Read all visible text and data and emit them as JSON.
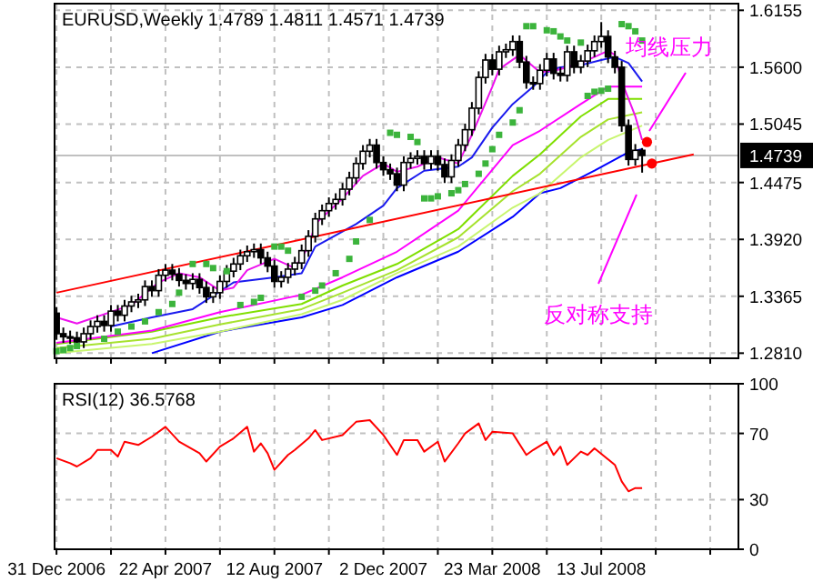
{
  "chart_data": [
    {
      "type": "candlestick",
      "title": "EURUSD,Weekly  1.4789 1.4811 1.4571 1.4739",
      "x": [
        "2006-12-31",
        "2007-01-07",
        "2007-01-14",
        "2007-01-21",
        "2007-01-28",
        "2007-02-04",
        "2007-02-11",
        "2007-02-18",
        "2007-02-25",
        "2007-03-04",
        "2007-03-11",
        "2007-03-18",
        "2007-03-25",
        "2007-04-01",
        "2007-04-08",
        "2007-04-15",
        "2007-04-22",
        "2007-04-29",
        "2007-05-06",
        "2007-05-13",
        "2007-05-20",
        "2007-05-27",
        "2007-06-03",
        "2007-06-10",
        "2007-06-17",
        "2007-06-24",
        "2007-07-01",
        "2007-07-08",
        "2007-07-15",
        "2007-07-22",
        "2007-07-29",
        "2007-08-05",
        "2007-08-12",
        "2007-08-19",
        "2007-08-26",
        "2007-09-02",
        "2007-09-09",
        "2007-09-16",
        "2007-09-23",
        "2007-09-30",
        "2007-10-07",
        "2007-10-14",
        "2007-10-21",
        "2007-10-28",
        "2007-11-04",
        "2007-11-11",
        "2007-11-18",
        "2007-11-25",
        "2007-12-02",
        "2007-12-09",
        "2007-12-16",
        "2007-12-23",
        "2007-12-30",
        "2008-01-06",
        "2008-01-13",
        "2008-01-20",
        "2008-01-27",
        "2008-02-03",
        "2008-02-10",
        "2008-02-17",
        "2008-02-24",
        "2008-03-02",
        "2008-03-09",
        "2008-03-16",
        "2008-03-23",
        "2008-03-30",
        "2008-04-06",
        "2008-04-13",
        "2008-04-20",
        "2008-04-27",
        "2008-05-04",
        "2008-05-11",
        "2008-05-18",
        "2008-05-25",
        "2008-06-01",
        "2008-06-08",
        "2008-06-15",
        "2008-06-22",
        "2008-06-29",
        "2008-07-06",
        "2008-07-13",
        "2008-07-20",
        "2008-07-27",
        "2008-08-03",
        "2008-08-10",
        "2008-08-17",
        "2008-08-24"
      ],
      "ohlc": [
        [
          1.32,
          1.326,
          1.294,
          1.3
        ],
        [
          1.3,
          1.306,
          1.291,
          1.297
        ],
        [
          1.297,
          1.303,
          1.29,
          1.296
        ],
        [
          1.296,
          1.302,
          1.286,
          1.292
        ],
        [
          1.292,
          1.306,
          1.286,
          1.3
        ],
        [
          1.3,
          1.313,
          1.294,
          1.307
        ],
        [
          1.307,
          1.318,
          1.301,
          1.312
        ],
        [
          1.312,
          1.318,
          1.302,
          1.308
        ],
        [
          1.308,
          1.328,
          1.302,
          1.322
        ],
        [
          1.322,
          1.328,
          1.312,
          1.318
        ],
        [
          1.318,
          1.333,
          1.312,
          1.327
        ],
        [
          1.327,
          1.337,
          1.321,
          1.331
        ],
        [
          1.331,
          1.339,
          1.325,
          1.333
        ],
        [
          1.333,
          1.352,
          1.327,
          1.346
        ],
        [
          1.346,
          1.352,
          1.336,
          1.342
        ],
        [
          1.342,
          1.363,
          1.336,
          1.357
        ],
        [
          1.357,
          1.368,
          1.351,
          1.362
        ],
        [
          1.362,
          1.368,
          1.352,
          1.358
        ],
        [
          1.358,
          1.364,
          1.346,
          1.352
        ],
        [
          1.352,
          1.358,
          1.343,
          1.349
        ],
        [
          1.349,
          1.359,
          1.343,
          1.353
        ],
        [
          1.353,
          1.359,
          1.339,
          1.345
        ],
        [
          1.345,
          1.351,
          1.33,
          1.336
        ],
        [
          1.336,
          1.346,
          1.33,
          1.34
        ],
        [
          1.34,
          1.357,
          1.334,
          1.351
        ],
        [
          1.351,
          1.367,
          1.345,
          1.361
        ],
        [
          1.361,
          1.374,
          1.355,
          1.368
        ],
        [
          1.368,
          1.382,
          1.362,
          1.376
        ],
        [
          1.376,
          1.386,
          1.37,
          1.38
        ],
        [
          1.38,
          1.388,
          1.374,
          1.382
        ],
        [
          1.382,
          1.388,
          1.368,
          1.374
        ],
        [
          1.374,
          1.38,
          1.36,
          1.366
        ],
        [
          1.366,
          1.372,
          1.345,
          1.351
        ],
        [
          1.351,
          1.361,
          1.345,
          1.355
        ],
        [
          1.355,
          1.369,
          1.349,
          1.363
        ],
        [
          1.363,
          1.375,
          1.357,
          1.369
        ],
        [
          1.369,
          1.387,
          1.363,
          1.381
        ],
        [
          1.381,
          1.401,
          1.375,
          1.395
        ],
        [
          1.395,
          1.418,
          1.389,
          1.412
        ],
        [
          1.412,
          1.426,
          1.406,
          1.42
        ],
        [
          1.42,
          1.433,
          1.414,
          1.427
        ],
        [
          1.427,
          1.437,
          1.421,
          1.431
        ],
        [
          1.431,
          1.447,
          1.425,
          1.441
        ],
        [
          1.441,
          1.458,
          1.435,
          1.452
        ],
        [
          1.452,
          1.472,
          1.446,
          1.466
        ],
        [
          1.466,
          1.484,
          1.46,
          1.478
        ],
        [
          1.478,
          1.49,
          1.472,
          1.484
        ],
        [
          1.484,
          1.49,
          1.461,
          1.467
        ],
        [
          1.467,
          1.473,
          1.454,
          1.46
        ],
        [
          1.46,
          1.466,
          1.45,
          1.456
        ],
        [
          1.456,
          1.462,
          1.439,
          1.445
        ],
        [
          1.445,
          1.473,
          1.439,
          1.467
        ],
        [
          1.467,
          1.477,
          1.461,
          1.471
        ],
        [
          1.471,
          1.479,
          1.465,
          1.473
        ],
        [
          1.473,
          1.479,
          1.46,
          1.466
        ],
        [
          1.466,
          1.479,
          1.46,
          1.473
        ],
        [
          1.473,
          1.479,
          1.459,
          1.465
        ],
        [
          1.465,
          1.471,
          1.447,
          1.453
        ],
        [
          1.453,
          1.475,
          1.447,
          1.469
        ],
        [
          1.469,
          1.49,
          1.463,
          1.484
        ],
        [
          1.484,
          1.505,
          1.478,
          1.499
        ],
        [
          1.499,
          1.526,
          1.493,
          1.52
        ],
        [
          1.52,
          1.556,
          1.514,
          1.55
        ],
        [
          1.55,
          1.573,
          1.544,
          1.567
        ],
        [
          1.567,
          1.573,
          1.552,
          1.558
        ],
        [
          1.558,
          1.581,
          1.552,
          1.575
        ],
        [
          1.575,
          1.583,
          1.569,
          1.577
        ],
        [
          1.577,
          1.591,
          1.571,
          1.585
        ],
        [
          1.585,
          1.591,
          1.559,
          1.565
        ],
        [
          1.565,
          1.571,
          1.539,
          1.545
        ],
        [
          1.545,
          1.551,
          1.538,
          1.544
        ],
        [
          1.544,
          1.563,
          1.538,
          1.557
        ],
        [
          1.557,
          1.574,
          1.551,
          1.568
        ],
        [
          1.568,
          1.574,
          1.548,
          1.554
        ],
        [
          1.554,
          1.56,
          1.546,
          1.552
        ],
        [
          1.552,
          1.581,
          1.546,
          1.575
        ],
        [
          1.575,
          1.581,
          1.554,
          1.56
        ],
        [
          1.56,
          1.572,
          1.554,
          1.566
        ],
        [
          1.566,
          1.582,
          1.56,
          1.576
        ],
        [
          1.576,
          1.591,
          1.57,
          1.585
        ],
        [
          1.585,
          1.604,
          1.579,
          1.59
        ],
        [
          1.59,
          1.596,
          1.564,
          1.57
        ],
        [
          1.57,
          1.576,
          1.554,
          1.56
        ],
        [
          1.56,
          1.566,
          1.497,
          1.503
        ],
        [
          1.503,
          1.509,
          1.464,
          1.47
        ],
        [
          1.47,
          1.485,
          1.464,
          1.4789
        ],
        [
          1.4789,
          1.4811,
          1.4571,
          1.4739
        ]
      ],
      "series": [
        {
          "type": "line",
          "color": "#0000ff",
          "x": [
            "2007-04-08",
            "2007-06-17",
            "2007-09-09",
            "2007-10-21",
            "2007-12-16",
            "2008-02-17",
            "2008-04-13",
            "2008-05-11",
            "2008-06-01",
            "2008-07-06",
            "2008-08-10",
            "2008-08-24"
          ],
          "values": [
            1.281,
            1.302,
            1.316,
            1.328,
            1.355,
            1.38,
            1.414,
            1.437,
            1.442,
            1.459,
            1.477,
            1.48
          ]
        },
        {
          "type": "line",
          "color": "#c8f56e",
          "x": [
            "2006-12-31",
            "2007-04-08",
            "2007-06-17",
            "2007-09-09",
            "2007-10-21",
            "2007-12-16",
            "2008-02-17",
            "2008-04-13",
            "2008-05-11",
            "2008-06-22",
            "2008-07-20",
            "2008-08-24"
          ],
          "values": [
            1.281,
            1.29,
            1.302,
            1.319,
            1.333,
            1.359,
            1.385,
            1.423,
            1.437,
            1.472,
            1.489,
            1.503
          ]
        },
        {
          "type": "line",
          "color": "#a6e22e",
          "x": [
            "2006-12-31",
            "2007-04-08",
            "2007-06-17",
            "2007-09-09",
            "2007-10-21",
            "2007-12-16",
            "2008-02-17",
            "2008-04-13",
            "2008-05-11",
            "2008-06-22",
            "2008-07-20",
            "2008-08-24"
          ],
          "values": [
            1.286,
            1.295,
            1.309,
            1.324,
            1.34,
            1.362,
            1.394,
            1.439,
            1.456,
            1.492,
            1.509,
            1.516
          ]
        },
        {
          "type": "line",
          "color": "#7fdf00",
          "x": [
            "2006-12-31",
            "2007-04-08",
            "2007-06-17",
            "2007-09-09",
            "2007-10-21",
            "2007-12-16",
            "2008-02-17",
            "2008-04-13",
            "2008-05-11",
            "2008-06-22",
            "2008-07-20",
            "2008-08-24"
          ],
          "values": [
            1.29,
            1.302,
            1.316,
            1.329,
            1.347,
            1.368,
            1.402,
            1.454,
            1.475,
            1.512,
            1.529,
            1.529
          ]
        },
        {
          "type": "line",
          "color": "#ff00ff",
          "x": [
            "2006-12-31",
            "2007-04-08",
            "2007-06-17",
            "2007-09-09",
            "2007-10-21",
            "2007-12-16",
            "2008-02-17",
            "2008-04-13",
            "2008-05-11",
            "2008-06-22",
            "2008-07-20",
            "2008-08-24"
          ],
          "values": [
            1.291,
            1.303,
            1.321,
            1.338,
            1.355,
            1.38,
            1.42,
            1.484,
            1.498,
            1.524,
            1.541,
            1.541
          ]
        },
        {
          "type": "line",
          "color": "#1a1aee",
          "x": [
            "2007-02-25",
            "2007-04-08",
            "2007-05-20",
            "2007-07-01",
            "2007-08-12",
            "2007-09-09",
            "2007-09-23",
            "2007-11-04",
            "2007-12-02",
            "2007-12-16",
            "2008-01-13",
            "2008-02-17",
            "2008-03-02",
            "2008-03-23",
            "2008-04-13",
            "2008-05-04",
            "2008-05-18",
            "2008-06-01",
            "2008-06-22",
            "2008-07-13",
            "2008-07-27",
            "2008-08-10",
            "2008-08-24"
          ],
          "values": [
            1.307,
            1.316,
            1.324,
            1.35,
            1.355,
            1.359,
            1.385,
            1.407,
            1.425,
            1.442,
            1.459,
            1.463,
            1.472,
            1.501,
            1.524,
            1.541,
            1.555,
            1.56,
            1.562,
            1.567,
            1.57,
            1.564,
            1.546
          ]
        },
        {
          "type": "line",
          "color": "#ee10ee",
          "x": [
            "2006-12-31",
            "2007-01-21",
            "2007-03-18",
            "2007-04-15",
            "2007-05-06",
            "2007-05-27",
            "2007-06-17",
            "2007-07-01",
            "2007-07-15",
            "2007-08-12",
            "2007-09-02",
            "2007-09-16",
            "2007-09-23",
            "2007-10-21",
            "2007-11-11",
            "2007-12-02",
            "2007-12-16",
            "2008-01-06",
            "2008-01-27",
            "2008-02-17",
            "2008-03-02",
            "2008-03-23",
            "2008-03-30",
            "2008-04-20",
            "2008-05-11",
            "2008-06-01",
            "2008-06-22",
            "2008-07-20",
            "2008-07-27",
            "2008-08-03",
            "2008-08-17",
            "2008-08-24"
          ],
          "values": [
            1.316,
            1.31,
            1.328,
            1.35,
            1.359,
            1.355,
            1.342,
            1.345,
            1.362,
            1.373,
            1.364,
            1.385,
            1.407,
            1.432,
            1.454,
            1.466,
            1.458,
            1.463,
            1.472,
            1.466,
            1.494,
            1.541,
            1.558,
            1.572,
            1.555,
            1.558,
            1.564,
            1.576,
            1.572,
            1.546,
            1.512,
            1.489
          ]
        },
        {
          "type": "line",
          "color": "#ff0000",
          "x": [
            "2006-12-31",
            "2008-10-16"
          ],
          "values": [
            1.34,
            1.475
          ]
        },
        {
          "type": "scatter",
          "marker": "square",
          "color": "#3cb43c",
          "x": [
            "2006-12-31",
            "2007-01-07",
            "2007-01-14",
            "2007-01-21",
            "2007-02-18",
            "2007-03-04",
            "2007-03-18",
            "2007-04-01",
            "2007-04-15",
            "2007-04-29",
            "2007-05-06",
            "2007-05-20",
            "2007-06-03",
            "2007-06-10",
            "2007-06-24",
            "2007-07-08",
            "2007-07-22",
            "2007-07-29",
            "2007-08-12",
            "2007-08-19",
            "2007-08-26",
            "2007-09-09",
            "2007-09-23",
            "2007-09-30",
            "2007-10-14",
            "2007-10-28",
            "2007-11-04",
            "2007-11-18",
            "2007-12-09",
            "2007-12-16",
            "2007-12-30",
            "2008-01-06",
            "2008-01-13",
            "2008-01-20",
            "2008-01-27",
            "2008-02-10",
            "2008-02-17",
            "2008-02-24",
            "2008-03-09",
            "2008-03-16",
            "2008-03-23",
            "2008-03-30",
            "2008-04-13",
            "2008-04-20",
            "2008-04-27",
            "2008-05-04",
            "2008-05-18",
            "2008-05-25",
            "2008-06-01",
            "2008-06-08",
            "2008-06-22",
            "2008-06-29",
            "2008-07-06",
            "2008-07-13",
            "2008-07-20",
            "2008-08-03",
            "2008-08-10",
            "2008-08-17",
            "2008-08-24"
          ],
          "values": [
            1.283,
            1.284,
            1.286,
            1.288,
            1.295,
            1.302,
            1.307,
            1.312,
            1.321,
            1.329,
            1.34,
            1.368,
            1.368,
            1.364,
            1.361,
            1.328,
            1.331,
            1.335,
            1.385,
            1.385,
            1.381,
            1.336,
            1.342,
            1.347,
            1.359,
            1.373,
            1.39,
            1.411,
            1.496,
            1.494,
            1.492,
            1.487,
            1.432,
            1.432,
            1.434,
            1.437,
            1.44,
            1.446,
            1.456,
            1.466,
            1.48,
            1.494,
            1.506,
            1.518,
            1.6,
            1.6,
            1.596,
            1.595,
            1.59,
            1.586,
            1.584,
            1.532,
            1.536,
            1.537,
            1.539,
            1.602,
            1.6,
            1.595,
            1.586
          ]
        },
        {
          "type": "scatter",
          "marker": "circle",
          "color": "#ff0000",
          "x": [
            "2008-08-29",
            "2008-09-03"
          ],
          "values": [
            1.487,
            1.466
          ]
        }
      ],
      "xlim": [
        "2006-12-29",
        "2008-12-01"
      ],
      "xticks": [
        {
          "value": "2006-12-31",
          "label": null
        },
        {
          "value": "2007-02-25",
          "label": null
        },
        {
          "value": "2007-04-22",
          "label": null
        },
        {
          "value": "2007-06-17",
          "label": null
        },
        {
          "value": "2007-08-12",
          "label": null
        },
        {
          "value": "2007-10-07",
          "label": null
        },
        {
          "value": "2007-12-02",
          "label": null
        },
        {
          "value": "2008-01-27",
          "label": null
        },
        {
          "value": "2008-03-23",
          "label": null
        },
        {
          "value": "2008-05-18",
          "label": null
        },
        {
          "value": "2008-07-13",
          "label": null
        },
        {
          "value": "2008-09-07",
          "label": null
        },
        {
          "value": "2008-11-02",
          "label": null
        }
      ],
      "ylim": [
        1.276,
        1.622
      ],
      "yticks": [
        {
          "value": 1.281,
          "label": "1.2810"
        },
        1.3365,
        {
          "value": 1.392,
          "label": "1.3920"
        },
        1.4475,
        1.5045,
        {
          "value": 1.56,
          "label": "1.5600"
        },
        1.6155
      ],
      "grid": true,
      "tick_labels": "y",
      "ref_lines": [
        {
          "axis": "y",
          "value": 1.4739,
          "label": "1.4739",
          "color": "#c0c0c0"
        }
      ],
      "annotations": [
        "均线压力",
        "反对称支持"
      ]
    },
    {
      "type": "line",
      "title": "RSI(12) 36.5768",
      "series": [
        {
          "color": "#ff0000",
          "x": [
            "2006-12-31",
            "2007-01-14",
            "2007-01-21",
            "2007-02-04",
            "2007-02-11",
            "2007-02-25",
            "2007-03-04",
            "2007-03-11",
            "2007-03-25",
            "2007-04-08",
            "2007-04-22",
            "2007-05-06",
            "2007-05-27",
            "2007-06-03",
            "2007-06-17",
            "2007-07-01",
            "2007-07-15",
            "2007-07-22",
            "2007-07-29",
            "2007-08-05",
            "2007-08-12",
            "2007-08-26",
            "2007-09-02",
            "2007-09-16",
            "2007-09-23",
            "2007-09-30",
            "2007-10-21",
            "2007-11-04",
            "2007-11-18",
            "2007-12-02",
            "2007-12-16",
            "2007-12-23",
            "2008-01-06",
            "2008-01-13",
            "2008-01-27",
            "2008-02-03",
            "2008-02-17",
            "2008-02-24",
            "2008-03-09",
            "2008-03-16",
            "2008-03-23",
            "2008-04-13",
            "2008-04-27",
            "2008-05-04",
            "2008-05-18",
            "2008-05-25",
            "2008-06-01",
            "2008-06-08",
            "2008-06-22",
            "2008-06-29",
            "2008-07-06",
            "2008-07-27",
            "2008-08-03",
            "2008-08-10",
            "2008-08-17",
            "2008-08-24"
          ],
          "values": [
            55,
            52,
            50,
            55,
            60,
            60,
            56,
            65,
            63,
            68,
            74,
            65,
            58,
            53,
            62,
            67,
            74,
            59,
            64,
            58,
            48,
            57,
            60,
            67,
            72,
            66,
            69,
            77,
            78,
            69,
            57,
            66,
            66,
            59,
            65,
            53,
            64,
            70,
            76,
            66,
            71,
            70,
            57,
            60,
            65,
            57,
            62,
            51,
            59,
            57,
            61,
            51,
            41,
            35,
            37,
            37
          ]
        }
      ],
      "xlim": [
        "2006-12-29",
        "2008-12-01"
      ],
      "xticks": [
        {
          "value": "2006-12-31",
          "label": "31 Dec 2006"
        },
        {
          "value": "2007-02-25",
          "label": null
        },
        {
          "value": "2007-04-22",
          "label": "22 Apr 2007"
        },
        {
          "value": "2007-06-17",
          "label": null
        },
        {
          "value": "2007-08-12",
          "label": "12 Aug 2007"
        },
        {
          "value": "2007-10-07",
          "label": null
        },
        {
          "value": "2007-12-02",
          "label": "2 Dec 2007"
        },
        {
          "value": "2008-01-27",
          "label": null
        },
        {
          "value": "2008-03-23",
          "label": "23 Mar 2008"
        },
        {
          "value": "2008-05-18",
          "label": null
        },
        {
          "value": "2008-07-13",
          "label": "13 Jul 2008"
        },
        {
          "value": "2008-09-07",
          "label": null
        },
        {
          "value": "2008-11-02",
          "label": null
        }
      ],
      "ylim": [
        0,
        100
      ],
      "yticks": [
        0,
        30,
        70,
        100
      ],
      "grid": true
    }
  ]
}
